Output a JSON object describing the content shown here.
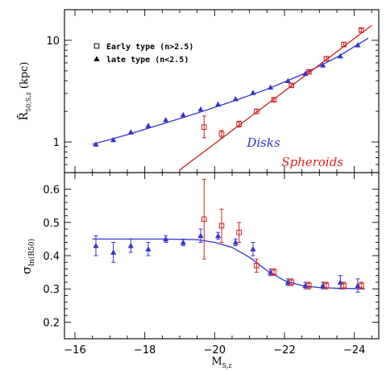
{
  "chart_data": [
    {
      "type": "scatter",
      "panel": "top",
      "ylabel": "R̄50,S,z (kpc)",
      "yscale": "log",
      "ylim": [
        0.5,
        20
      ],
      "xlim": [
        -15.7,
        -24.7
      ],
      "x_ticks": [
        -16,
        -18,
        -20,
        -22,
        -24
      ],
      "y_ticks": [
        1,
        10
      ],
      "y_ticklabels": [
        "1",
        "10"
      ],
      "legend": {
        "position": "top-left",
        "entries": [
          {
            "label": "Early type (n>2.5)",
            "marker": "open-square"
          },
          {
            "label": "late type (n<2.5)",
            "marker": "filled-triangle"
          }
        ]
      },
      "annotations": [
        {
          "text": "Disks",
          "color": "#3333cc",
          "x": -21.4,
          "y": 0.9
        },
        {
          "text": "Spheroids",
          "color": "#e02020",
          "x": -22.8,
          "y": 0.58
        }
      ],
      "series": [
        {
          "color": "#3333cc",
          "marker": "filled-triangle",
          "x": [
            -16.6,
            -17.1,
            -17.6,
            -18.1,
            -18.6,
            -19.1,
            -19.6,
            -20.1,
            -20.6,
            -21.1,
            -21.6,
            -22.1,
            -22.6,
            -23.1,
            -23.6,
            -24.1
          ],
          "y": [
            0.95,
            1.05,
            1.25,
            1.45,
            1.65,
            1.85,
            2.1,
            2.35,
            2.65,
            3.05,
            3.45,
            4.0,
            4.7,
            5.7,
            7.0,
            9.0
          ]
        },
        {
          "color": "#cc2222",
          "marker": "open-square",
          "x": [
            -19.7,
            -20.2,
            -20.7,
            -21.2,
            -21.7,
            -22.2,
            -22.7,
            -23.2,
            -23.7,
            -24.2
          ],
          "y": [
            1.4,
            1.2,
            1.5,
            2.0,
            2.6,
            3.6,
            4.9,
            6.6,
            9.1,
            12.6
          ],
          "err_low": [
            0.3,
            0.1,
            0.1,
            0.1,
            0.1,
            0.15,
            0.2,
            0.3,
            0.4,
            0.5
          ],
          "err_high": [
            0.4,
            0.1,
            0.1,
            0.1,
            0.1,
            0.15,
            0.2,
            0.3,
            0.4,
            0.5
          ]
        }
      ],
      "fits": [
        {
          "color": "#3333cc",
          "x": [
            -16.5,
            -17.5,
            -18.5,
            -19.5,
            -20.5,
            -21.5,
            -22.5,
            -23.5,
            -24.4
          ],
          "y": [
            0.95,
            1.18,
            1.5,
            1.92,
            2.5,
            3.3,
            4.6,
            6.8,
            10.5
          ]
        },
        {
          "color": "#cc2222",
          "x": [
            -19.0,
            -24.5
          ],
          "y": [
            0.53,
            14.0
          ]
        }
      ]
    },
    {
      "type": "scatter",
      "panel": "bottom",
      "xlabel": "MS,z",
      "ylabel": "σln(R50)",
      "xlim": [
        -15.7,
        -24.7
      ],
      "ylim": [
        0.15,
        0.65
      ],
      "x_ticks": [
        -16,
        -18,
        -20,
        -22,
        -24
      ],
      "x_ticklabels": [
        "−16",
        "−18",
        "−20",
        "−22",
        "−24"
      ],
      "y_ticks": [
        0.2,
        0.3,
        0.4,
        0.5,
        0.6
      ],
      "y_ticklabels": [
        "0.2",
        "0.3",
        "0.4",
        "0.5",
        "0.6"
      ],
      "series": [
        {
          "color": "#3333cc",
          "marker": "filled-triangle",
          "x": [
            -16.6,
            -17.1,
            -17.6,
            -18.1,
            -18.6,
            -19.1,
            -19.6,
            -20.1,
            -20.6,
            -21.1,
            -21.6,
            -22.1,
            -22.6,
            -23.1,
            -23.6,
            -24.1
          ],
          "y": [
            0.43,
            0.41,
            0.43,
            0.42,
            0.45,
            0.44,
            0.46,
            0.46,
            0.44,
            0.42,
            0.35,
            0.32,
            0.31,
            0.31,
            0.32,
            0.31
          ],
          "err": [
            0.03,
            0.03,
            0.02,
            0.02,
            0.01,
            0.01,
            0.02,
            0.01,
            0.01,
            0.02,
            0.01,
            0.01,
            0.01,
            0.01,
            0.02,
            0.02
          ]
        },
        {
          "color": "#cc2222",
          "marker": "open-square",
          "x": [
            -19.7,
            -20.2,
            -20.7,
            -21.2,
            -21.7,
            -22.2,
            -22.7,
            -23.2,
            -23.7,
            -24.2
          ],
          "y": [
            0.51,
            0.49,
            0.47,
            0.37,
            0.35,
            0.32,
            0.31,
            0.31,
            0.31,
            0.31
          ],
          "err": [
            0.12,
            0.05,
            0.03,
            0.02,
            0.01,
            0.01,
            0.01,
            0.01,
            0.01,
            0.01
          ]
        }
      ],
      "fits": [
        {
          "color": "#3333cc",
          "x": [
            -16.5,
            -17.5,
            -18.5,
            -19.5,
            -20.0,
            -20.5,
            -21.0,
            -21.5,
            -22.0,
            -22.5,
            -23.0,
            -23.5,
            -24.3
          ],
          "y": [
            0.45,
            0.45,
            0.45,
            0.448,
            0.44,
            0.425,
            0.395,
            0.355,
            0.325,
            0.31,
            0.304,
            0.302,
            0.3
          ]
        }
      ]
    }
  ]
}
